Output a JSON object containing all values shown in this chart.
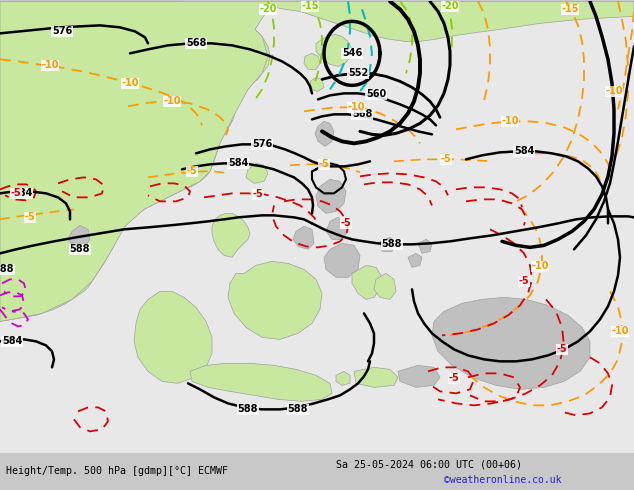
{
  "title_left": "Height/Temp. 500 hPa [gdmp][°C] ECMWF",
  "title_right": "Sa 25-05-2024 06:00 UTC (00+06)",
  "credit": "©weatheronline.co.uk",
  "bg_color": "#e8e8e8",
  "land_green": "#c8e8a0",
  "land_gray": "#c0c0c0",
  "border_color": "#a0a0a0",
  "z500_color": "#000000",
  "orange_color": "#ff9900",
  "red_color": "#dd0000",
  "lime_color": "#88cc00",
  "cyan_color": "#00bbbb",
  "magenta_color": "#cc00cc",
  "dpi": 100,
  "figsize": [
    6.34,
    4.9
  ]
}
